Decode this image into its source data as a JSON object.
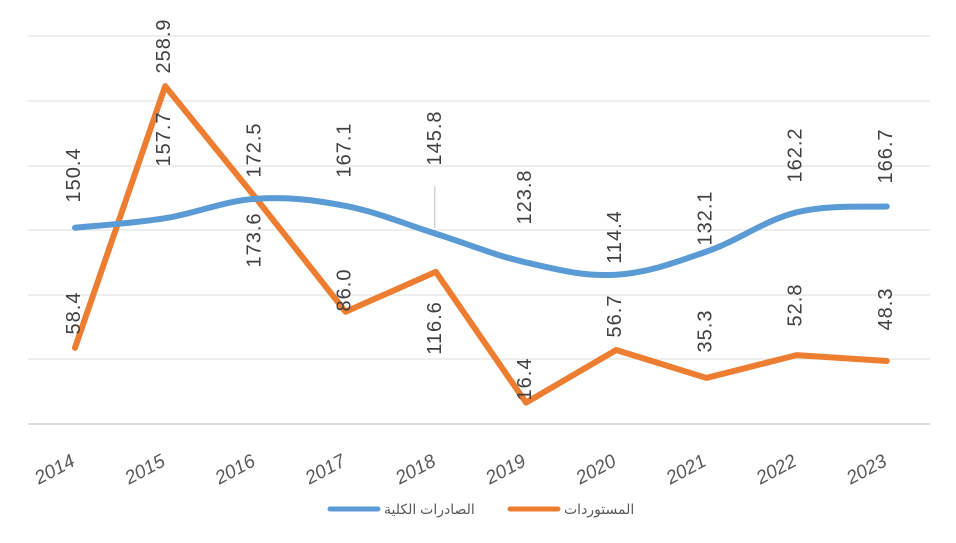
{
  "chart_data": {
    "type": "line",
    "title": "",
    "xlabel": "",
    "ylabel": "",
    "categories": [
      "2014",
      "2015",
      "2016",
      "2017",
      "2018",
      "2019",
      "2020",
      "2021",
      "2022",
      "2023"
    ],
    "series": [
      {
        "name": "الصادرات الكلية",
        "color": "#5B9BD5",
        "values": [
          150.4,
          157.7,
          172.5,
          167.1,
          145.8,
          123.8,
          114.4,
          132.1,
          162.2,
          166.7
        ]
      },
      {
        "name": "المستوردات",
        "color": "#ED7D31",
        "values": [
          58.4,
          258.9,
          173.6,
          86.0,
          116.6,
          16.4,
          56.7,
          35.3,
          52.8,
          48.3
        ]
      }
    ],
    "data_labels": {
      "exports": [
        "150.4",
        "157.7",
        "172.5",
        "167.1",
        "145.8",
        "123.8",
        "114.4",
        "132.1",
        "162.2",
        "166.7"
      ],
      "imports": [
        "58.4",
        "258.9",
        "173.6",
        "86.0",
        "116.6",
        "16.4",
        "56.7",
        "35.3",
        "52.8",
        "48.3"
      ]
    },
    "ylim": [
      0,
      300
    ],
    "grid": true,
    "legend_position": "bottom"
  }
}
